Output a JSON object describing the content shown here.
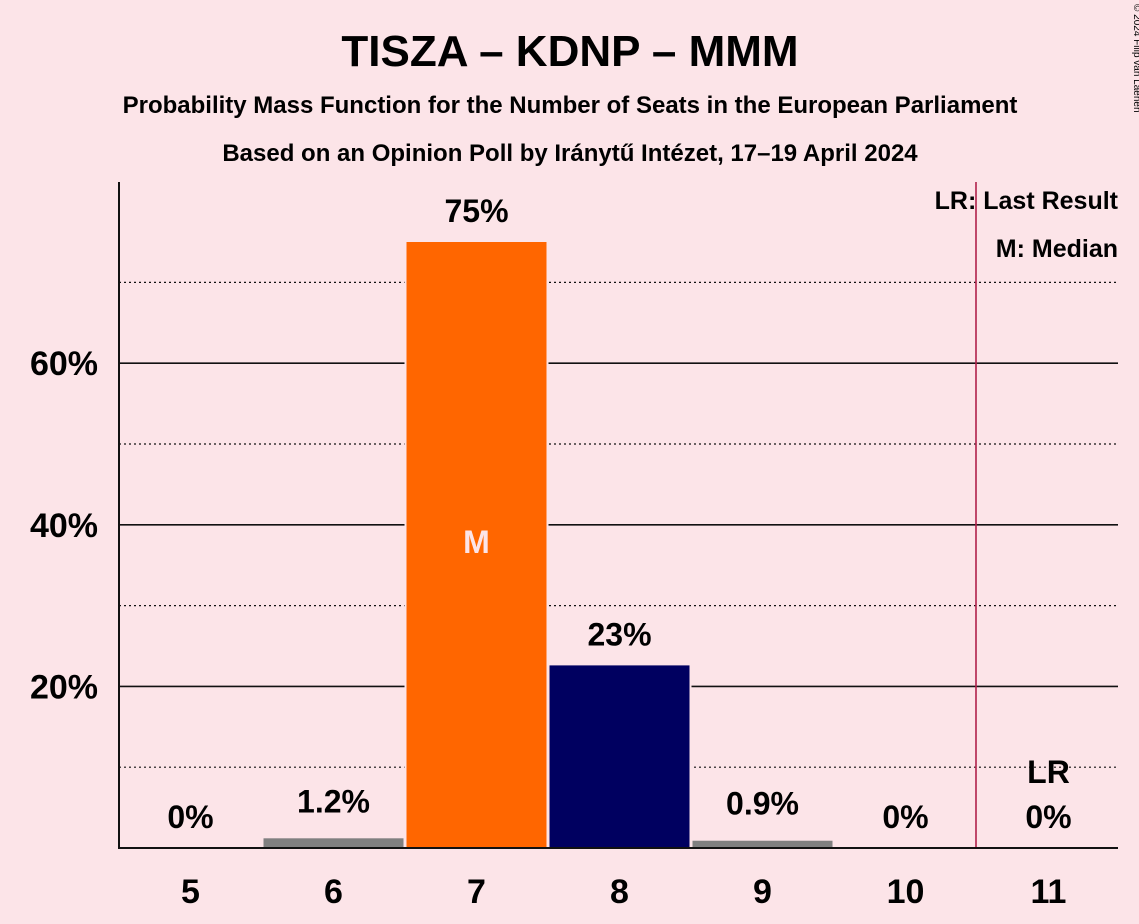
{
  "chart_data": {
    "type": "bar",
    "title": "TISZA – KDNP – MMM",
    "subtitle_1": "Probability Mass Function for the Number of Seats in the European Parliament",
    "subtitle_2": "Based on an Opinion Poll by Iránytű Intézet, 17–19 April 2024",
    "copyright": "© 2024 Filip van Laenen",
    "categories": [
      "5",
      "6",
      "7",
      "8",
      "9",
      "10",
      "11"
    ],
    "values": [
      0,
      1.2,
      75,
      22.6,
      0.9,
      0,
      0
    ],
    "value_labels": [
      "0%",
      "1.2%",
      "75%",
      "23%",
      "0.9%",
      "0%",
      "0%"
    ],
    "bar_colors": [
      "#808080",
      "#808080",
      "#ff6600",
      "#000060",
      "#808080",
      "#808080",
      "#808080"
    ],
    "ylim": [
      0,
      82
    ],
    "yticks": [
      20,
      40,
      60
    ],
    "ytick_labels": [
      "20%",
      "40%",
      "60%"
    ],
    "minor_gridlines": [
      10,
      30,
      50,
      70
    ],
    "median_category": "7",
    "median_marker": "M",
    "last_result_category": "11",
    "last_result_marker": "LR",
    "last_result_line_color": "#b0204a",
    "legend": [
      "LR: Last Result",
      "M: Median"
    ],
    "legend_position": "top-right"
  }
}
